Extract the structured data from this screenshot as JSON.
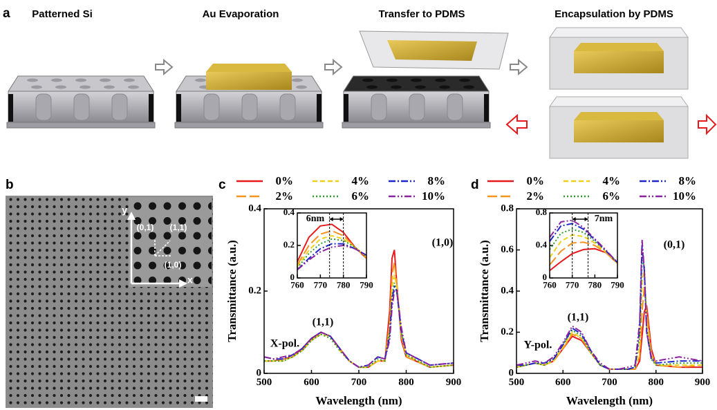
{
  "panel_labels": [
    "a",
    "b",
    "c",
    "d"
  ],
  "fabrication": {
    "steps": [
      "Patterned Si",
      "Au Evaporation",
      "Transfer to PDMS",
      "Encapsulation  by PDMS"
    ]
  },
  "sem": {
    "axis_labels": [
      "y",
      "x"
    ],
    "lattice_labels": [
      "(0,1)",
      "(1,1)",
      "(1,0)"
    ]
  },
  "chart_data": [
    {
      "type": "line",
      "x_label": "Wavelength (nm)",
      "y_label": "Transmittance (a.u.)",
      "annotations": [
        "(1,1)",
        "(1,0)",
        "X-pol."
      ],
      "x": [
        500,
        520,
        540,
        560,
        580,
        600,
        620,
        640,
        660,
        680,
        700,
        720,
        740,
        755,
        765,
        770,
        775,
        780,
        790,
        800,
        850,
        900
      ],
      "xlim": [
        500,
        900
      ],
      "xticks": [
        500,
        600,
        700,
        800,
        900
      ],
      "ylim": [
        0,
        0.4
      ],
      "yticks": [
        0,
        0.2,
        0.4
      ],
      "series": [
        {
          "name": "0%",
          "color": "#e8191c",
          "dash": "solid",
          "values": [
            0.03,
            0.03,
            0.035,
            0.04,
            0.06,
            0.085,
            0.1,
            0.09,
            0.06,
            0.03,
            0.015,
            0.015,
            0.03,
            0.03,
            0.15,
            0.28,
            0.3,
            0.22,
            0.08,
            0.04,
            0.015,
            0.02
          ]
        },
        {
          "name": "2%",
          "color": "#f5931e",
          "dash": "long",
          "values": [
            0.03,
            0.03,
            0.035,
            0.04,
            0.055,
            0.08,
            0.1,
            0.09,
            0.06,
            0.03,
            0.015,
            0.015,
            0.03,
            0.03,
            0.12,
            0.24,
            0.27,
            0.22,
            0.09,
            0.04,
            0.015,
            0.02
          ]
        },
        {
          "name": "4%",
          "color": "#f2d01a",
          "dash": "dash",
          "values": [
            0.03,
            0.03,
            0.03,
            0.04,
            0.055,
            0.08,
            0.095,
            0.09,
            0.055,
            0.03,
            0.015,
            0.015,
            0.03,
            0.03,
            0.11,
            0.21,
            0.24,
            0.21,
            0.09,
            0.045,
            0.015,
            0.02
          ]
        },
        {
          "name": "6%",
          "color": "#2e9a2e",
          "dash": "dot",
          "values": [
            0.03,
            0.03,
            0.03,
            0.04,
            0.055,
            0.08,
            0.095,
            0.085,
            0.055,
            0.03,
            0.015,
            0.015,
            0.035,
            0.03,
            0.1,
            0.19,
            0.22,
            0.2,
            0.1,
            0.045,
            0.015,
            0.02
          ]
        },
        {
          "name": "8%",
          "color": "#1d27c9",
          "dash": "dashdot",
          "values": [
            0.04,
            0.035,
            0.035,
            0.045,
            0.06,
            0.085,
            0.1,
            0.09,
            0.06,
            0.03,
            0.015,
            0.02,
            0.04,
            0.035,
            0.09,
            0.18,
            0.21,
            0.2,
            0.1,
            0.05,
            0.02,
            0.025
          ]
        },
        {
          "name": "10%",
          "color": "#8b239e",
          "dash": "dashdotdot",
          "values": [
            0.04,
            0.035,
            0.04,
            0.045,
            0.06,
            0.085,
            0.1,
            0.09,
            0.06,
            0.03,
            0.015,
            0.02,
            0.04,
            0.035,
            0.08,
            0.16,
            0.2,
            0.2,
            0.11,
            0.05,
            0.02,
            0.025
          ]
        }
      ]
    },
    {
      "type": "line",
      "annotations": [
        "6nm"
      ],
      "markers": [
        774,
        780
      ],
      "x": [
        760,
        765,
        770,
        775,
        780,
        785,
        790
      ],
      "xlim": [
        760,
        790
      ],
      "xticks": [
        760,
        770,
        780,
        790
      ],
      "ylim": [
        0,
        0.4
      ],
      "yticks": [
        0,
        0.2,
        0.4
      ],
      "series": [
        {
          "color": "#e8191c",
          "dash": "solid",
          "values": [
            0.1,
            0.25,
            0.32,
            0.33,
            0.28,
            0.19,
            0.12
          ]
        },
        {
          "color": "#f5931e",
          "dash": "long",
          "values": [
            0.08,
            0.2,
            0.27,
            0.29,
            0.26,
            0.19,
            0.12
          ]
        },
        {
          "color": "#f2d01a",
          "dash": "dash",
          "values": [
            0.07,
            0.17,
            0.24,
            0.26,
            0.24,
            0.19,
            0.13
          ]
        },
        {
          "color": "#2e9a2e",
          "dash": "dot",
          "values": [
            0.06,
            0.15,
            0.21,
            0.24,
            0.23,
            0.19,
            0.13
          ]
        },
        {
          "color": "#1d27c9",
          "dash": "dashdot",
          "values": [
            0.05,
            0.12,
            0.18,
            0.21,
            0.21,
            0.18,
            0.14
          ]
        },
        {
          "color": "#8b239e",
          "dash": "dashdotdot",
          "values": [
            0.05,
            0.11,
            0.16,
            0.19,
            0.2,
            0.18,
            0.14
          ]
        }
      ]
    },
    {
      "type": "line",
      "x_label": "Wavelength (nm)",
      "y_label": "Transmittance (a.u.)",
      "annotations": [
        "(0,1)",
        "(1,1)",
        "Y-pol."
      ],
      "x": [
        500,
        520,
        540,
        560,
        580,
        600,
        620,
        640,
        660,
        680,
        700,
        720,
        740,
        755,
        765,
        770,
        775,
        780,
        790,
        800,
        850,
        900
      ],
      "xlim": [
        500,
        900
      ],
      "xticks": [
        500,
        600,
        700,
        800,
        900
      ],
      "ylim": [
        0,
        0.8
      ],
      "yticks": [
        0,
        0.2,
        0.4,
        0.6,
        0.8
      ],
      "series": [
        {
          "name": "0%",
          "color": "#e8191c",
          "dash": "solid",
          "values": [
            0.03,
            0.04,
            0.05,
            0.04,
            0.06,
            0.12,
            0.18,
            0.16,
            0.1,
            0.04,
            0.02,
            0.02,
            0.02,
            0.02,
            0.06,
            0.18,
            0.3,
            0.33,
            0.12,
            0.04,
            0.03,
            0.03
          ]
        },
        {
          "name": "2%",
          "color": "#f5931e",
          "dash": "long",
          "values": [
            0.03,
            0.04,
            0.05,
            0.04,
            0.06,
            0.12,
            0.19,
            0.17,
            0.1,
            0.04,
            0.02,
            0.02,
            0.02,
            0.02,
            0.08,
            0.3,
            0.42,
            0.3,
            0.1,
            0.04,
            0.03,
            0.04
          ]
        },
        {
          "name": "4%",
          "color": "#f2d01a",
          "dash": "dash",
          "values": [
            0.03,
            0.04,
            0.05,
            0.04,
            0.06,
            0.13,
            0.2,
            0.17,
            0.1,
            0.04,
            0.02,
            0.02,
            0.02,
            0.03,
            0.12,
            0.45,
            0.5,
            0.25,
            0.08,
            0.04,
            0.04,
            0.04
          ]
        },
        {
          "name": "6%",
          "color": "#2e9a2e",
          "dash": "dot",
          "values": [
            0.03,
            0.04,
            0.05,
            0.04,
            0.07,
            0.14,
            0.21,
            0.18,
            0.1,
            0.04,
            0.02,
            0.02,
            0.02,
            0.03,
            0.18,
            0.55,
            0.52,
            0.22,
            0.07,
            0.04,
            0.05,
            0.05
          ]
        },
        {
          "name": "8%",
          "color": "#1d27c9",
          "dash": "dashdot",
          "values": [
            0.04,
            0.04,
            0.05,
            0.05,
            0.07,
            0.14,
            0.22,
            0.19,
            0.11,
            0.04,
            0.02,
            0.02,
            0.02,
            0.03,
            0.22,
            0.62,
            0.5,
            0.2,
            0.07,
            0.05,
            0.06,
            0.06
          ]
        },
        {
          "name": "10%",
          "color": "#8b239e",
          "dash": "dashdotdot",
          "values": [
            0.04,
            0.05,
            0.06,
            0.05,
            0.08,
            0.15,
            0.23,
            0.2,
            0.11,
            0.05,
            0.02,
            0.02,
            0.03,
            0.04,
            0.25,
            0.65,
            0.5,
            0.2,
            0.08,
            0.06,
            0.08,
            0.06
          ]
        }
      ]
    },
    {
      "type": "line",
      "annotations": [
        "7nm"
      ],
      "markers": [
        770,
        777
      ],
      "x": [
        760,
        765,
        770,
        775,
        780,
        785,
        790
      ],
      "xlim": [
        760,
        790
      ],
      "xticks": [
        760,
        770,
        780,
        790
      ],
      "ylim": [
        0,
        0.8
      ],
      "yticks": [
        0,
        0.4,
        0.8
      ],
      "series": [
        {
          "color": "#e8191c",
          "dash": "solid",
          "values": [
            0.09,
            0.2,
            0.3,
            0.35,
            0.36,
            0.31,
            0.18
          ]
        },
        {
          "color": "#f5931e",
          "dash": "long",
          "values": [
            0.16,
            0.33,
            0.43,
            0.44,
            0.4,
            0.31,
            0.18
          ]
        },
        {
          "color": "#f2d01a",
          "dash": "dash",
          "values": [
            0.25,
            0.45,
            0.53,
            0.51,
            0.43,
            0.32,
            0.18
          ]
        },
        {
          "color": "#2e9a2e",
          "dash": "dot",
          "values": [
            0.35,
            0.55,
            0.6,
            0.56,
            0.45,
            0.33,
            0.19
          ]
        },
        {
          "color": "#1d27c9",
          "dash": "dashdot",
          "values": [
            0.45,
            0.64,
            0.67,
            0.6,
            0.47,
            0.33,
            0.19
          ]
        },
        {
          "color": "#8b239e",
          "dash": "dashdotdot",
          "values": [
            0.5,
            0.69,
            0.71,
            0.62,
            0.48,
            0.34,
            0.19
          ]
        }
      ]
    }
  ]
}
